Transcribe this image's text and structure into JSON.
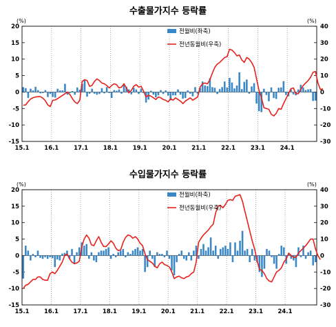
{
  "chart_data": [
    {
      "type": "bar+line",
      "title": "수출물가지수 등락률",
      "unit_left": "(%)",
      "unit_right": "(%)",
      "ylim_left": [
        -15,
        20
      ],
      "ylim_right": [
        -30,
        40
      ],
      "yticks_left": [
        "20",
        "15",
        "10",
        "5",
        "0",
        "-5",
        "-10",
        "-15"
      ],
      "yticks_right": [
        "40",
        "30",
        "20",
        "10",
        "0",
        "-10",
        "-20",
        "-30"
      ],
      "xticks": [
        "15.1",
        "16.1",
        "17.1",
        "18.1",
        "19.1",
        "20.1",
        "21.1",
        "22.1",
        "23.1",
        "24.1"
      ],
      "grid": "dotted vertical at each January",
      "legend_position": "top-right",
      "colors": {
        "bar": "#3a87c8",
        "line": "#e8201c"
      },
      "series": [
        {
          "name": "전월비(좌축)",
          "axis": "left",
          "kind": "bar",
          "values": [
            1.5,
            1.2,
            -1.8,
            1.0,
            0.5,
            1.6,
            0.6,
            -0.4,
            -0.3,
            0.6,
            -1.5,
            -0.6,
            -1.5,
            -1.7,
            1.0,
            0.5,
            0.5,
            2.5,
            -0.8,
            -0.3,
            0.3,
            -0.8,
            1.4,
            0.7,
            2.5,
            3.6,
            -1.4,
            -0.5,
            1.0,
            -0.5,
            -0.8,
            -0.6,
            1.2,
            -0.4,
            1.5,
            -0.3,
            -1.8,
            0.6,
            0.4,
            0.8,
            -0.5,
            2.6,
            1.6,
            0.8,
            -0.7,
            1.3,
            0.8,
            -0.6,
            1.0,
            -0.3,
            -3.2,
            -2.3,
            0.4,
            -0.8,
            -1.6,
            -1.0,
            0.6,
            -0.6,
            0.5,
            -1.1,
            -2.5,
            -1.0,
            -1.0,
            0.8,
            -0.8,
            -2.0,
            -1.8,
            0.5,
            -0.5,
            -1.3,
            1.5,
            -0.5,
            1.3,
            3.2,
            2.0,
            1.8,
            4.2,
            1.5,
            1.3,
            -0.6,
            0.9,
            1.5,
            3.2,
            1.4,
            4.3,
            2.9,
            1.1,
            2.0,
            6.0,
            0.9,
            3.1,
            3.8,
            -0.5,
            1.7,
            2.7,
            -3.5,
            -5.8,
            -6.1,
            1.0,
            -0.9,
            -2.8,
            1.4,
            -1.8,
            -2.1,
            1.3,
            1.4,
            3.3,
            -0.9,
            -1.3,
            0.8,
            -0.7,
            -1.0,
            0.8,
            2.2,
            1.4,
            0.6,
            0.8,
            0.9,
            -2.7,
            -2.6
          ]
        },
        {
          "name": "전년동월비(우축)",
          "axis": "right",
          "kind": "line",
          "values": [
            -8.0,
            -7.8,
            -5.8,
            -4.2,
            -3.4,
            -3.0,
            -2.8,
            -2.8,
            -3.7,
            -5.3,
            -7.8,
            -8.8,
            -5.0,
            -4.8,
            -4.0,
            -3.0,
            -2.0,
            -1.0,
            0.0,
            -1.5,
            -4.0,
            -6.0,
            -7.0,
            -5.0,
            6.5,
            7.5,
            7.0,
            3.5,
            4.0,
            6.5,
            8.0,
            7.0,
            5.5,
            5.0,
            4.0,
            2.5,
            4.0,
            5.0,
            4.5,
            2.5,
            3.0,
            5.0,
            2.5,
            -0.5,
            1.0,
            3.5,
            4.5,
            3.0,
            3.5,
            0.5,
            -3.0,
            -2.0,
            -2.5,
            -3.5,
            -4.5,
            -3.0,
            -3.5,
            -4.5,
            -5.0,
            -6.0,
            -4.0,
            -5.0,
            -3.5,
            -4.5,
            -5.5,
            -7.0,
            -5.5,
            -4.5,
            -3.5,
            -5.0,
            -4.0,
            -3.0,
            3.0,
            5.0,
            5.5,
            5.0,
            7.5,
            11.5,
            15.0,
            17.0,
            18.0,
            19.5,
            21.0,
            21.5,
            26.0,
            25.5,
            24.0,
            22.0,
            22.5,
            19.5,
            18.0,
            21.0,
            20.0,
            18.0,
            15.0,
            8.0,
            1.0,
            -3.5,
            -9.5,
            -10.0,
            -10.5,
            -13.5,
            -14.5,
            -13.0,
            -10.0,
            -10.5,
            -7.0,
            -4.0,
            -1.0,
            2.0,
            2.5,
            -1.0,
            -1.0,
            1.5,
            4.0,
            5.5,
            7.0,
            9.0,
            12.0,
            12.5,
            5.5,
            1.5,
            2.0
          ]
        }
      ]
    },
    {
      "type": "bar+line",
      "title": "수입물가지수 등락률",
      "unit_left": "(%)",
      "unit_right": "(%)",
      "ylim_left": [
        -15,
        20
      ],
      "ylim_right": [
        -30,
        40
      ],
      "yticks_left": [
        "20",
        "15",
        "10",
        "5",
        "0",
        "-5",
        "-10",
        "-15"
      ],
      "yticks_right": [
        "40",
        "30",
        "20",
        "10",
        "0",
        "-10",
        "-20",
        "-30"
      ],
      "xticks": [
        "15.1",
        "16.1",
        "17.1",
        "18.1",
        "19.1",
        "20.1",
        "21.1",
        "22.1",
        "23.1",
        "24.1"
      ],
      "grid": "dotted vertical at each January",
      "legend_position": "top-right",
      "colors": {
        "bar": "#3a87c8",
        "line": "#e8201c"
      },
      "series": [
        {
          "name": "전월비(좌축)",
          "axis": "left",
          "kind": "bar",
          "values": [
            -7.0,
            3.0,
            1.5,
            -1.5,
            0.5,
            -0.5,
            1.5,
            -0.7,
            -1.0,
            -0.5,
            -1.0,
            -0.5,
            -0.8,
            -3.5,
            -1.2,
            -1.5,
            0.6,
            0.8,
            1.5,
            -1.0,
            2.0,
            -2.5,
            1.0,
            2.5,
            4.0,
            3.0,
            3.5,
            -1.0,
            1.0,
            -1.5,
            -2.0,
            1.0,
            1.5,
            1.5,
            2.0,
            2.5,
            -1.0,
            0.5,
            -0.5,
            1.0,
            1.5,
            2.0,
            -0.5,
            1.0,
            0.5,
            1.5,
            2.0,
            2.5,
            1.5,
            2.0,
            -5.0,
            -3.5,
            1.5,
            -1.0,
            -3.5,
            1.0,
            0.5,
            0.5,
            -0.5,
            1.5,
            -1.0,
            -4.5,
            -6.0,
            -2.0,
            0.5,
            1.5,
            -1.0,
            -1.5,
            1.0,
            -1.5,
            1.5,
            3.0,
            -1.0,
            2.0,
            3.5,
            1.5,
            2.5,
            5.5,
            1.5,
            3.0,
            -1.0,
            2.0,
            2.5,
            3.0,
            2.0,
            4.0,
            -2.0,
            4.0,
            1.5,
            4.5,
            7.5,
            1.5,
            2.0,
            -2.0,
            2.0,
            -1.5,
            -2.0,
            -5.0,
            -6.5,
            -4.0,
            2.0,
            1.5,
            -0.5,
            -2.5,
            -4.0,
            0.5,
            3.0,
            2.5,
            -2.5,
            0.5,
            -1.0,
            -1.5,
            -3.5,
            2.5,
            -0.5,
            3.0,
            -1.0,
            1.0,
            1.5,
            -3.0,
            -2.0
          ]
        },
        {
          "name": "전년동월비(우축)",
          "axis": "right",
          "kind": "line",
          "values": [
            -20.0,
            -18.0,
            -17.5,
            -16.0,
            -14.5,
            -14.5,
            -13.0,
            -13.0,
            -14.5,
            -15.0,
            -15.0,
            -11.0,
            -10.0,
            -11.0,
            -9.0,
            -6.5,
            -4.0,
            0.0,
            1.0,
            -2.0,
            -4.0,
            -5.0,
            -4.5,
            -3.5,
            5.0,
            10.0,
            12.5,
            10.5,
            6.5,
            6.0,
            9.0,
            11.5,
            8.0,
            5.5,
            5.5,
            7.0,
            9.0,
            7.5,
            4.5,
            3.0,
            3.5,
            8.0,
            11.0,
            12.5,
            12.0,
            10.5,
            11.5,
            10.0,
            7.5,
            6.0,
            1.0,
            -2.5,
            -3.5,
            -4.5,
            -6.5,
            -7.5,
            -5.0,
            -4.0,
            -5.5,
            -6.0,
            -7.0,
            -10.0,
            -14.0,
            -13.0,
            -12.5,
            -13.5,
            -14.0,
            -13.0,
            -12.5,
            -11.0,
            -10.0,
            -4.0,
            8.0,
            10.5,
            12.5,
            14.0,
            15.5,
            17.5,
            19.0,
            26.0,
            30.0,
            30.5,
            29.0,
            31.0,
            33.5,
            34.0,
            33.5,
            36.0,
            36.5,
            37.0,
            33.0,
            27.0,
            21.0,
            15.0,
            9.0,
            4.0,
            -3.0,
            -8.5,
            -9.0,
            -11.0,
            -14.0,
            -15.5,
            -16.0,
            -13.0,
            -10.0,
            -9.0,
            -7.5,
            -4.0,
            -2.0,
            1.5,
            0.0,
            -1.0,
            -1.0,
            1.5,
            3.0,
            4.5,
            6.0,
            8.0,
            10.0,
            10.0,
            4.0,
            0.0,
            -2.5
          ]
        }
      ]
    }
  ]
}
